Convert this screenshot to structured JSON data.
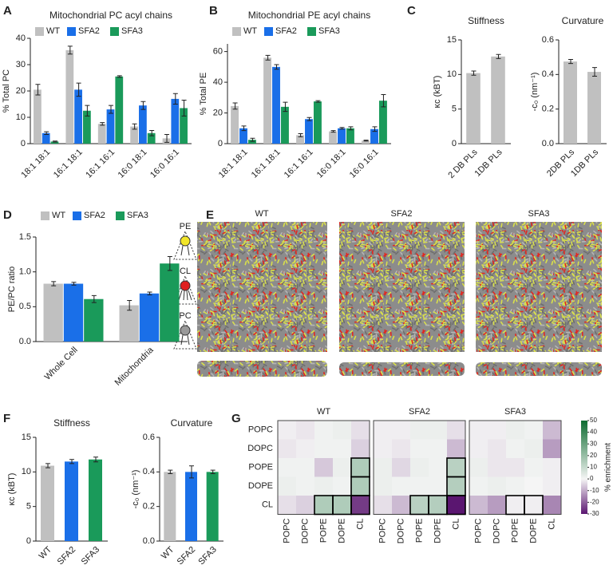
{
  "chart_data": [
    {
      "type": "bar",
      "panel": "A",
      "title": "Mitochondrial PC acyl chains",
      "ylabel": "% Total PC",
      "categories": [
        "18:1 18:1",
        "16:1 18:1",
        "16:1 16:1",
        "16:0 18:1",
        "16:0 16:1"
      ],
      "series": [
        {
          "name": "WT",
          "color": "#c0c0c0",
          "values": [
            20.5,
            35.5,
            7.5,
            6.5,
            2
          ],
          "errors": [
            2,
            1.5,
            0.5,
            1,
            1.5
          ]
        },
        {
          "name": "SFA2",
          "color": "#1a6fe8",
          "values": [
            4,
            20.5,
            13,
            14.5,
            17
          ],
          "errors": [
            0.5,
            2.5,
            1.5,
            1.5,
            2
          ]
        },
        {
          "name": "SFA3",
          "color": "#1a9a5a",
          "values": [
            0.8,
            12.5,
            25.5,
            4,
            13.5
          ],
          "errors": [
            0.2,
            2,
            0.3,
            1,
            3
          ]
        }
      ],
      "ylim": [
        0,
        40
      ],
      "yticks": [
        0,
        10,
        20,
        30,
        40
      ]
    },
    {
      "type": "bar",
      "panel": "B",
      "title": "Mitochondrial PE acyl chains",
      "ylabel": "% Total PE",
      "categories": [
        "18:1 18:1",
        "16:1 18:1",
        "16:1 16:1",
        "16:0 18:1",
        "16:0 16:1"
      ],
      "series": [
        {
          "name": "WT",
          "color": "#c0c0c0",
          "values": [
            24.5,
            56,
            5.5,
            8,
            2
          ],
          "errors": [
            2,
            1.5,
            1,
            0.5,
            0.3
          ]
        },
        {
          "name": "SFA2",
          "color": "#1a6fe8",
          "values": [
            10,
            50,
            16,
            10,
            9.5
          ],
          "errors": [
            1.5,
            1.5,
            1,
            0.5,
            1.5
          ]
        },
        {
          "name": "SFA3",
          "color": "#1a9a5a",
          "values": [
            2.5,
            24,
            27.5,
            10,
            28
          ],
          "errors": [
            1,
            3,
            0.5,
            1,
            4
          ]
        }
      ],
      "ylim": [
        0,
        65
      ],
      "yticks": [
        0,
        20,
        40,
        60
      ]
    },
    {
      "type": "bar",
      "panel": "C",
      "title": "Stiffness",
      "ylabel": "κc (kBT)",
      "categories": [
        "2 DB PLs",
        "1DB PLs"
      ],
      "values": [
        10.2,
        12.6
      ],
      "errors": [
        0.3,
        0.3
      ],
      "color": "#c0c0c0",
      "ylim": [
        0,
        15
      ],
      "yticks": [
        0,
        5,
        10,
        15
      ]
    },
    {
      "type": "bar",
      "title": "Curvature",
      "ylabel": "-c₀ (nm⁻¹)",
      "categories": [
        "2DB PLs",
        "1DB PLs"
      ],
      "values": [
        0.475,
        0.415
      ],
      "errors": [
        0.012,
        0.025
      ],
      "color": "#c0c0c0",
      "ylim": [
        0,
        0.6
      ],
      "yticks": [
        {
          "value": 0,
          "label": "0.0"
        },
        0.2,
        0.4,
        0.6
      ]
    },
    {
      "type": "bar",
      "panel": "D",
      "ylabel": "PE/PC ratio",
      "categories": [
        "Whole Cell",
        "Mitochondria"
      ],
      "series": [
        {
          "name": "WT",
          "color": "#c0c0c0",
          "values": [
            0.83,
            0.52
          ],
          "errors": [
            0.03,
            0.07
          ]
        },
        {
          "name": "SFA2",
          "color": "#1a6fe8",
          "values": [
            0.83,
            0.69
          ],
          "errors": [
            0.02,
            0.02
          ]
        },
        {
          "name": "SFA3",
          "color": "#1a9a5a",
          "values": [
            0.61,
            1.12
          ],
          "errors": [
            0.05,
            0.1
          ]
        }
      ],
      "ylim": [
        0,
        1.5
      ],
      "yticks": [
        {
          "value": 0,
          "label": "0.0"
        },
        0.5,
        {
          "value": 1,
          "label": "1.0"
        },
        1.5
      ]
    },
    {
      "type": "bar",
      "panel": "F",
      "title": "Stiffness",
      "ylabel": "κc (kBT)",
      "categories": [
        "WT",
        "SFA2",
        "SFA3"
      ],
      "values": [
        10.9,
        11.5,
        11.8
      ],
      "errors": [
        0.3,
        0.3,
        0.35
      ],
      "colors": [
        "#c0c0c0",
        "#1a6fe8",
        "#1a9a5a"
      ],
      "ylim": [
        0,
        15
      ],
      "yticks": [
        0,
        5,
        10,
        15
      ]
    },
    {
      "type": "bar",
      "title": "Curvature",
      "ylabel": "-c₀ (nm⁻¹)",
      "categories": [
        "WT",
        "SFA2",
        "SFA3"
      ],
      "values": [
        0.4,
        0.4,
        0.4
      ],
      "errors": [
        0.01,
        0.035,
        0.01
      ],
      "colors": [
        "#c0c0c0",
        "#1a6fe8",
        "#1a9a5a"
      ],
      "ylim": [
        0,
        0.6
      ],
      "yticks": [
        {
          "value": 0,
          "label": "0.0"
        },
        0.2,
        0.4,
        0.6
      ]
    },
    {
      "type": "heatmap",
      "panel": "G",
      "title": "WT",
      "rows": [
        "POPC",
        "DOPC",
        "POPE",
        "DOPE",
        "CL"
      ],
      "columns": [
        "POPC",
        "DOPC",
        "POPE",
        "DOPE",
        "CL"
      ],
      "values": [
        [
          -1,
          -2,
          1,
          2,
          -3
        ],
        [
          -2,
          -1,
          1,
          1,
          -5
        ],
        [
          1,
          1,
          -6,
          2,
          15
        ],
        [
          2,
          1,
          2,
          1,
          15
        ],
        [
          -3,
          -5,
          15,
          15,
          -25
        ]
      ],
      "outlined": [
        [
          2,
          4
        ],
        [
          3,
          4
        ],
        [
          4,
          2
        ],
        [
          4,
          3
        ],
        [
          4,
          4
        ]
      ]
    },
    {
      "type": "heatmap",
      "title": "SFA2",
      "columns": [
        "POPC",
        "DOPC",
        "POPE",
        "DOPE",
        "CL"
      ],
      "values": [
        [
          -1,
          -1,
          2,
          2,
          -3
        ],
        [
          -1,
          -2,
          1,
          1,
          -8
        ],
        [
          2,
          -4,
          2,
          1,
          13
        ],
        [
          2,
          1,
          1,
          1,
          14
        ],
        [
          -3,
          -8,
          13,
          14,
          -30
        ]
      ],
      "outlined": [
        [
          2,
          4
        ],
        [
          3,
          4
        ],
        [
          4,
          2
        ],
        [
          4,
          3
        ],
        [
          4,
          4
        ]
      ]
    },
    {
      "type": "heatmap",
      "title": "SFA3",
      "columns": [
        "POPC",
        "DOPC",
        "POPE",
        "DOPE",
        "CL"
      ],
      "values": [
        [
          -1,
          -1,
          2,
          1,
          -8
        ],
        [
          -1,
          -2,
          1,
          2,
          -12
        ],
        [
          2,
          -2,
          -2,
          1,
          -1
        ],
        [
          1,
          2,
          1,
          0,
          -1
        ],
        [
          -8,
          -12,
          -1,
          -1,
          -15
        ]
      ],
      "outlined": [
        [
          4,
          2
        ],
        [
          4,
          3
        ]
      ]
    },
    {
      "type": "colorbar",
      "label": "% enrichment",
      "lim": [
        -30,
        50
      ],
      "ticks": [
        50,
        40,
        30,
        20,
        10,
        0,
        -10,
        -20,
        -30
      ],
      "colors": {
        "low": "#5a1670",
        "mid": "#f5f5f5",
        "high": "#0d6b30"
      }
    }
  ],
  "snapshots": {
    "panel": "E",
    "systems": [
      "WT",
      "SFA2",
      "SFA3"
    ],
    "lipids": [
      "PE",
      "CL",
      "PC"
    ]
  }
}
